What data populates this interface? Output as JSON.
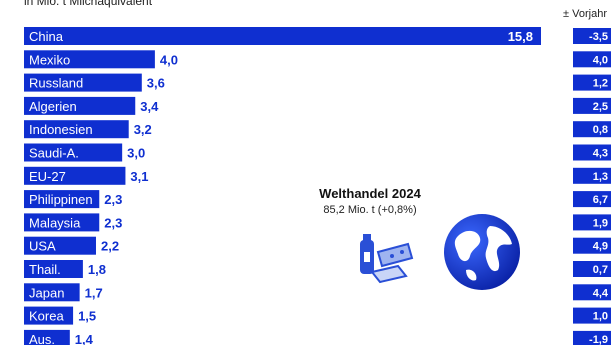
{
  "subtitle": "in Mio. t Milchäquivalent",
  "change_header": "± Vorjahr",
  "center": {
    "title": "Welthandel 2024",
    "subtitle": "85,2 Mio. t (+0,8%)"
  },
  "icons": [
    "dairy-products-icon",
    "globe-icon"
  ],
  "colors": {
    "bar": "#0f2fd0",
    "value_text": "#0f2fd0",
    "change_box": "#0f2fd0"
  },
  "chart_data": {
    "type": "bar",
    "orientation": "horizontal",
    "categories": [
      "China",
      "Mexiko",
      "Russland",
      "Algerien",
      "Indonesien",
      "Saudi-A.",
      "EU-27",
      "Philippinen",
      "Malaysia",
      "USA",
      "Thail.",
      "Japan",
      "Korea",
      "Aus."
    ],
    "values": [
      15.8,
      4.0,
      3.6,
      3.4,
      3.2,
      3.0,
      3.1,
      2.3,
      2.3,
      2.2,
      1.8,
      1.7,
      1.5,
      1.4
    ],
    "value_labels": [
      "15,8",
      "4,0",
      "3,6",
      "3,4",
      "3,2",
      "3,0",
      "3,1",
      "2,3",
      "2,3",
      "2,2",
      "1,8",
      "1,7",
      "1,5",
      "1,4"
    ],
    "change_labels": [
      "-3,5",
      "4,0",
      "1,2",
      "2,5",
      "0,8",
      "4,3",
      "1,3",
      "6,7",
      "1,9",
      "4,9",
      "0,7",
      "4,4",
      "1,0",
      "-1,9"
    ],
    "xlim": [
      0,
      15.8
    ]
  }
}
